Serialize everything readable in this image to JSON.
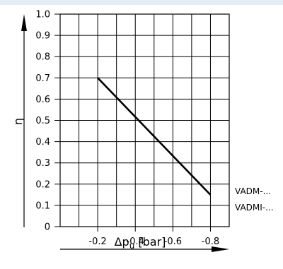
{
  "chart_data": {
    "type": "line",
    "ylabel": "η",
    "xlabel_main": "Δp",
    "xlabel_sub": "u",
    "xlabel_unit": " [bar]",
    "x_ticks": [
      "-0.2",
      "-0.4",
      "-0.6",
      "-0.8"
    ],
    "y_ticks": [
      "0",
      "0.1",
      "0.2",
      "0.3",
      "0.4",
      "0.5",
      "0.6",
      "0.7",
      "0.8",
      "0.9",
      "1.0"
    ],
    "xlim": [
      0,
      -0.9
    ],
    "ylim": [
      0,
      1.0
    ],
    "grid": true,
    "series": [
      {
        "x": [
          -0.2,
          -0.8
        ],
        "y": [
          0.7,
          0.15
        ]
      }
    ],
    "annotations": [
      "VADM-...",
      "VADMI-..."
    ]
  }
}
